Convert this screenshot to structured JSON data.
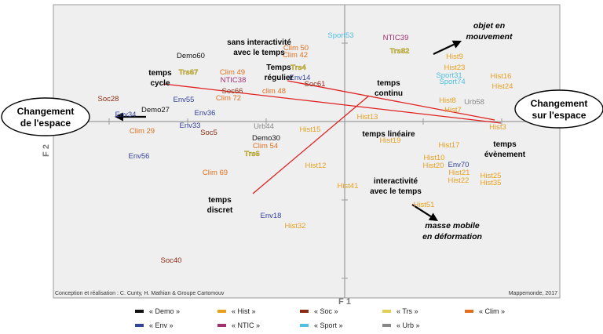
{
  "chart_data": {
    "type": "scatter",
    "xlabel": "F 1",
    "ylabel": "F 2",
    "credit_left": "Conception et réalisation : C. Cunty, H. Mathian & Groupe Cartomouv",
    "credit_right": "Mappemonde, 2017",
    "categories": [
      {
        "key": "Demo",
        "label": "« Demo »",
        "color": "#111111"
      },
      {
        "key": "Hist",
        "label": "« Hist »",
        "color": "#e8a020"
      },
      {
        "key": "Soc",
        "label": "« Soc »",
        "color": "#8b2c12"
      },
      {
        "key": "Trs",
        "label": "« Trs »",
        "color": "#e0d05a"
      },
      {
        "key": "Clim",
        "label": "« Clim »",
        "color": "#e07020"
      },
      {
        "key": "Env",
        "label": "« Env »",
        "color": "#34449a"
      },
      {
        "key": "NTIC",
        "label": "« NTIC »",
        "color": "#a0306e"
      },
      {
        "key": "Sport",
        "label": "« Sport »",
        "color": "#50c0e0"
      },
      {
        "key": "Urb",
        "label": "« Urb »",
        "color": "#888888"
      }
    ],
    "points": [
      {
        "label": "Sport53",
        "cat": "Sport",
        "x": -0.05,
        "y": 1.07
      },
      {
        "label": "NTIC39",
        "cat": "NTIC",
        "x": 0.65,
        "y": 1.04
      },
      {
        "label": "Trs82",
        "cat": "Trs",
        "x": 0.7,
        "y": 0.87
      },
      {
        "label": "Clim 50",
        "cat": "Clim",
        "x": -0.62,
        "y": 0.91
      },
      {
        "label": "Clim 42",
        "cat": "Clim",
        "x": -0.63,
        "y": 0.82
      },
      {
        "label": "Trs4",
        "cat": "Trs",
        "x": -0.59,
        "y": 0.66
      },
      {
        "label": "Env14",
        "cat": "Env",
        "x": -0.57,
        "y": 0.53
      },
      {
        "label": "Soc61",
        "cat": "Soc",
        "x": -0.38,
        "y": 0.45
      },
      {
        "label": "Demo60",
        "cat": "Demo",
        "x": -1.96,
        "y": 0.81
      },
      {
        "label": "Trs67",
        "cat": "Trs",
        "x": -1.99,
        "y": 0.6
      },
      {
        "label": "Clim 49",
        "cat": "Clim",
        "x": -1.43,
        "y": 0.6
      },
      {
        "label": "NTIC38",
        "cat": "NTIC",
        "x": -1.42,
        "y": 0.5
      },
      {
        "label": "Soc66",
        "cat": "Soc",
        "x": -1.43,
        "y": 0.36
      },
      {
        "label": "clim 48",
        "cat": "Clim",
        "x": -0.9,
        "y": 0.36
      },
      {
        "label": "Clim 72",
        "cat": "Clim",
        "x": -1.48,
        "y": 0.27
      },
      {
        "label": "Soc28",
        "cat": "Soc",
        "x": -3.01,
        "y": 0.26
      },
      {
        "label": "Env55",
        "cat": "Env",
        "x": -2.05,
        "y": 0.25
      },
      {
        "label": "Demo27",
        "cat": "Demo",
        "x": -2.41,
        "y": 0.12
      },
      {
        "label": "Env34",
        "cat": "Env",
        "x": -2.79,
        "y": 0.06
      },
      {
        "label": "Env36",
        "cat": "Env",
        "x": -1.78,
        "y": 0.08
      },
      {
        "label": "Env33",
        "cat": "Env",
        "x": -1.97,
        "y": -0.08
      },
      {
        "label": "Clim 29",
        "cat": "Clim",
        "x": -2.58,
        "y": -0.15
      },
      {
        "label": "Soc5",
        "cat": "Soc",
        "x": -1.73,
        "y": -0.17
      },
      {
        "label": "Urb44",
        "cat": "Urb",
        "x": -1.03,
        "y": -0.09
      },
      {
        "label": "Demo30",
        "cat": "Demo",
        "x": -1.0,
        "y": -0.24
      },
      {
        "label": "Clim 54",
        "cat": "Clim",
        "x": -1.01,
        "y": -0.34
      },
      {
        "label": "Trs6",
        "cat": "Trs",
        "x": -1.18,
        "y": -0.44
      },
      {
        "label": "Env56",
        "cat": "Env",
        "x": -2.62,
        "y": -0.47
      },
      {
        "label": "Clim 69",
        "cat": "Clim",
        "x": -1.65,
        "y": -0.68
      },
      {
        "label": "Hist15",
        "cat": "Hist",
        "x": -0.44,
        "y": -0.13
      },
      {
        "label": "Hist13",
        "cat": "Hist",
        "x": 0.29,
        "y": 0.03
      },
      {
        "label": "Hist19",
        "cat": "Hist",
        "x": 0.58,
        "y": -0.27
      },
      {
        "label": "Hist12",
        "cat": "Hist",
        "x": -0.37,
        "y": -0.59
      },
      {
        "label": "Hist41",
        "cat": "Hist",
        "x": 0.04,
        "y": -0.85
      },
      {
        "label": "Env18",
        "cat": "Env",
        "x": -0.94,
        "y": -1.23
      },
      {
        "label": "Hist32",
        "cat": "Hist",
        "x": -0.63,
        "y": -1.36
      },
      {
        "label": "Soc40",
        "cat": "Soc",
        "x": -2.21,
        "y": -1.8
      },
      {
        "label": "Hist9",
        "cat": "Hist",
        "x": 1.4,
        "y": 0.8
      },
      {
        "label": "Hist23",
        "cat": "Hist",
        "x": 1.4,
        "y": 0.66
      },
      {
        "label": "Sport31",
        "cat": "Sport",
        "x": 1.33,
        "y": 0.56
      },
      {
        "label": "Sport74",
        "cat": "Sport",
        "x": 1.37,
        "y": 0.48
      },
      {
        "label": "Hist16",
        "cat": "Hist",
        "x": 1.99,
        "y": 0.55
      },
      {
        "label": "Hist24",
        "cat": "Hist",
        "x": 2.01,
        "y": 0.42
      },
      {
        "label": "Hist8",
        "cat": "Hist",
        "x": 1.31,
        "y": 0.24
      },
      {
        "label": "Urb58",
        "cat": "Urb",
        "x": 1.65,
        "y": 0.22
      },
      {
        "label": "Hist7",
        "cat": "Hist",
        "x": 1.38,
        "y": 0.12
      },
      {
        "label": "Hist3",
        "cat": "Hist",
        "x": 1.95,
        "y": -0.1
      },
      {
        "label": "Hist17",
        "cat": "Hist",
        "x": 1.33,
        "y": -0.33
      },
      {
        "label": "Hist10",
        "cat": "Hist",
        "x": 1.14,
        "y": -0.49
      },
      {
        "label": "Hist20",
        "cat": "Hist",
        "x": 1.13,
        "y": -0.59
      },
      {
        "label": "Env70",
        "cat": "Env",
        "x": 1.45,
        "y": -0.58
      },
      {
        "label": "Hist21",
        "cat": "Hist",
        "x": 1.46,
        "y": -0.68
      },
      {
        "label": "Hist22",
        "cat": "Hist",
        "x": 1.45,
        "y": -0.78
      },
      {
        "label": "Hist25",
        "cat": "Hist",
        "x": 1.86,
        "y": -0.72
      },
      {
        "label": "Hist35",
        "cat": "Hist",
        "x": 1.86,
        "y": -0.81
      },
      {
        "label": "Hist51",
        "cat": "Hist",
        "x": 1.01,
        "y": -1.09
      }
    ],
    "annotations": [
      {
        "lines": [
          "sans interactivité",
          "avec le temps"
        ],
        "x": -1.09,
        "y": 0.98,
        "anchor": "middle"
      },
      {
        "lines": [
          "temps",
          "cycle"
        ],
        "x": -2.35,
        "y": 0.59,
        "anchor": "middle"
      },
      {
        "lines": [
          "Temps",
          "régulier"
        ],
        "x": -0.84,
        "y": 0.66,
        "anchor": "middle"
      },
      {
        "lines": [
          "temps",
          "continu"
        ],
        "x": 0.56,
        "y": 0.46,
        "anchor": "middle"
      },
      {
        "lines": [
          "temps linéaire"
        ],
        "x": 0.56,
        "y": -0.19,
        "anchor": "middle"
      },
      {
        "lines": [
          "temps",
          "évènement"
        ],
        "x": 2.04,
        "y": -0.32,
        "anchor": "middle"
      },
      {
        "lines": [
          "interactivité",
          "avec le temps"
        ],
        "x": 0.65,
        "y": -0.79,
        "anchor": "middle"
      },
      {
        "lines": [
          "temps",
          "discret"
        ],
        "x": -1.59,
        "y": -1.03,
        "anchor": "middle"
      }
    ],
    "italic_annotations": [
      {
        "lines": [
          "objet en",
          "mouvement"
        ],
        "x": 1.84,
        "y": 1.19
      },
      {
        "lines": [
          "masse mobile",
          "en déformation"
        ],
        "x": 1.37,
        "y": -1.36
      }
    ],
    "trend_lines": [
      {
        "x1": -2.31,
        "y1": 0.48,
        "x2": 1.99,
        "y2": -0.02
      },
      {
        "x1": -0.73,
        "y1": 0.52,
        "x2": 1.91,
        "y2": 0.02
      },
      {
        "x1": -1.17,
        "y1": -0.92,
        "x2": 0.31,
        "y2": 0.33
      }
    ],
    "arrows": [
      {
        "x1": 1.13,
        "y1": 0.86,
        "x2": 1.49,
        "y2": 1.03
      },
      {
        "x1": -2.53,
        "y1": 0.06,
        "x2": -2.93,
        "y2": 0.06
      },
      {
        "x1": 0.86,
        "y1": -1.06,
        "x2": 1.19,
        "y2": -1.27
      }
    ],
    "boxes": [
      {
        "lines": [
          "Changement",
          "de l'espace"
        ],
        "x": -3.81,
        "y": 0.06
      },
      {
        "lines": [
          "Changement",
          "sur l'espace"
        ],
        "x": 2.73,
        "y": 0.16
      }
    ]
  }
}
